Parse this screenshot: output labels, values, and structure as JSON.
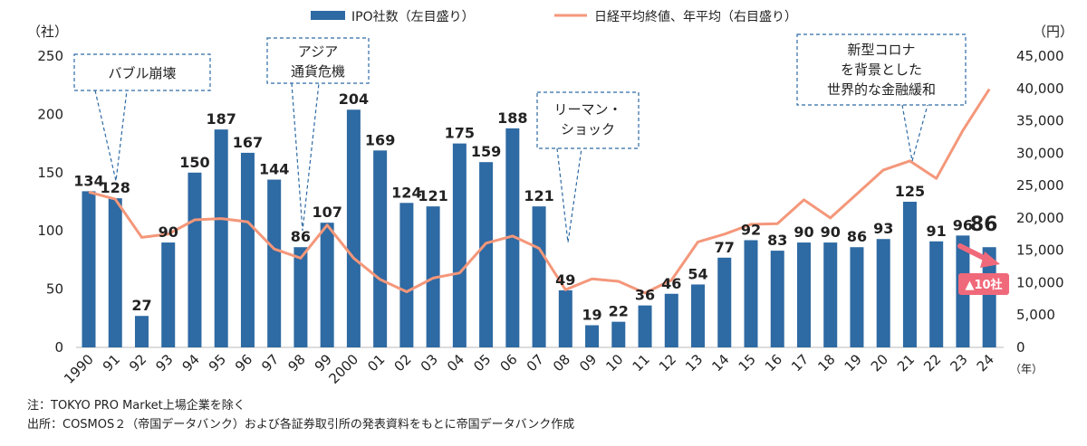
{
  "chart_data": {
    "type": "bar+line",
    "categories": [
      "1990",
      "91",
      "92",
      "93",
      "94",
      "95",
      "96",
      "97",
      "98",
      "99",
      "2000",
      "01",
      "02",
      "03",
      "04",
      "05",
      "06",
      "07",
      "08",
      "09",
      "10",
      "11",
      "12",
      "13",
      "14",
      "15",
      "16",
      "17",
      "18",
      "19",
      "20",
      "21",
      "22",
      "23",
      "24"
    ],
    "series": [
      {
        "name": "IPO社数（左目盛り）",
        "type": "bar",
        "axis": "left",
        "values": [
          134,
          128,
          27,
          90,
          150,
          187,
          167,
          144,
          86,
          107,
          204,
          169,
          124,
          121,
          175,
          159,
          188,
          121,
          49,
          19,
          22,
          36,
          46,
          54,
          77,
          92,
          83,
          90,
          90,
          86,
          93,
          125,
          91,
          96,
          86
        ]
      },
      {
        "name": "日経平均終値、年平均（右目盛り）",
        "type": "line",
        "axis": "right",
        "values": [
          24000,
          22900,
          17000,
          17500,
          19700,
          19900,
          19400,
          15200,
          13800,
          18900,
          13800,
          10500,
          8600,
          10700,
          11500,
          16100,
          17200,
          15300,
          8900,
          10600,
          10200,
          8400,
          10400,
          16300,
          17500,
          19000,
          19100,
          22800,
          20000,
          23700,
          27400,
          28800,
          26100,
          33500,
          39900
        ]
      }
    ],
    "ylim_left": [
      0,
      250
    ],
    "yticks_left": [
      0,
      50,
      100,
      150,
      200,
      250
    ],
    "ylim_right": [
      0,
      45000
    ],
    "yticks_right": [
      "0",
      "5,000",
      "10,000",
      "15,000",
      "20,000",
      "25,000",
      "30,000",
      "35,000",
      "40,000",
      "45,000"
    ],
    "yunit_left": "（社）",
    "yunit_right": "（円）",
    "xunit": "（年）",
    "grid": false,
    "legend_position": "top-center",
    "colors": {
      "bar": "#2e6aa3",
      "line": "#f4977a",
      "accent": "#f0697a",
      "callout_border": "#2e6aa3"
    },
    "annotations": {
      "bubble": "バブル崩壊",
      "asia_line1": "アジア",
      "asia_line2": "通貨危機",
      "lehman_line1": "リーマン・",
      "lehman_line2": "ショック",
      "easing_line1": "新型コロナ",
      "easing_line2": "を背景とした",
      "easing_line3": "世界的な金融緩和",
      "change_badge": "▲10社"
    },
    "notes": {
      "note": "注：TOKYO PRO Market上場企業を除く",
      "source": "出所：COSMOS２（帝国データバンク）および各証券取引所の発表資料をもとに帝国データバンク作成"
    }
  }
}
